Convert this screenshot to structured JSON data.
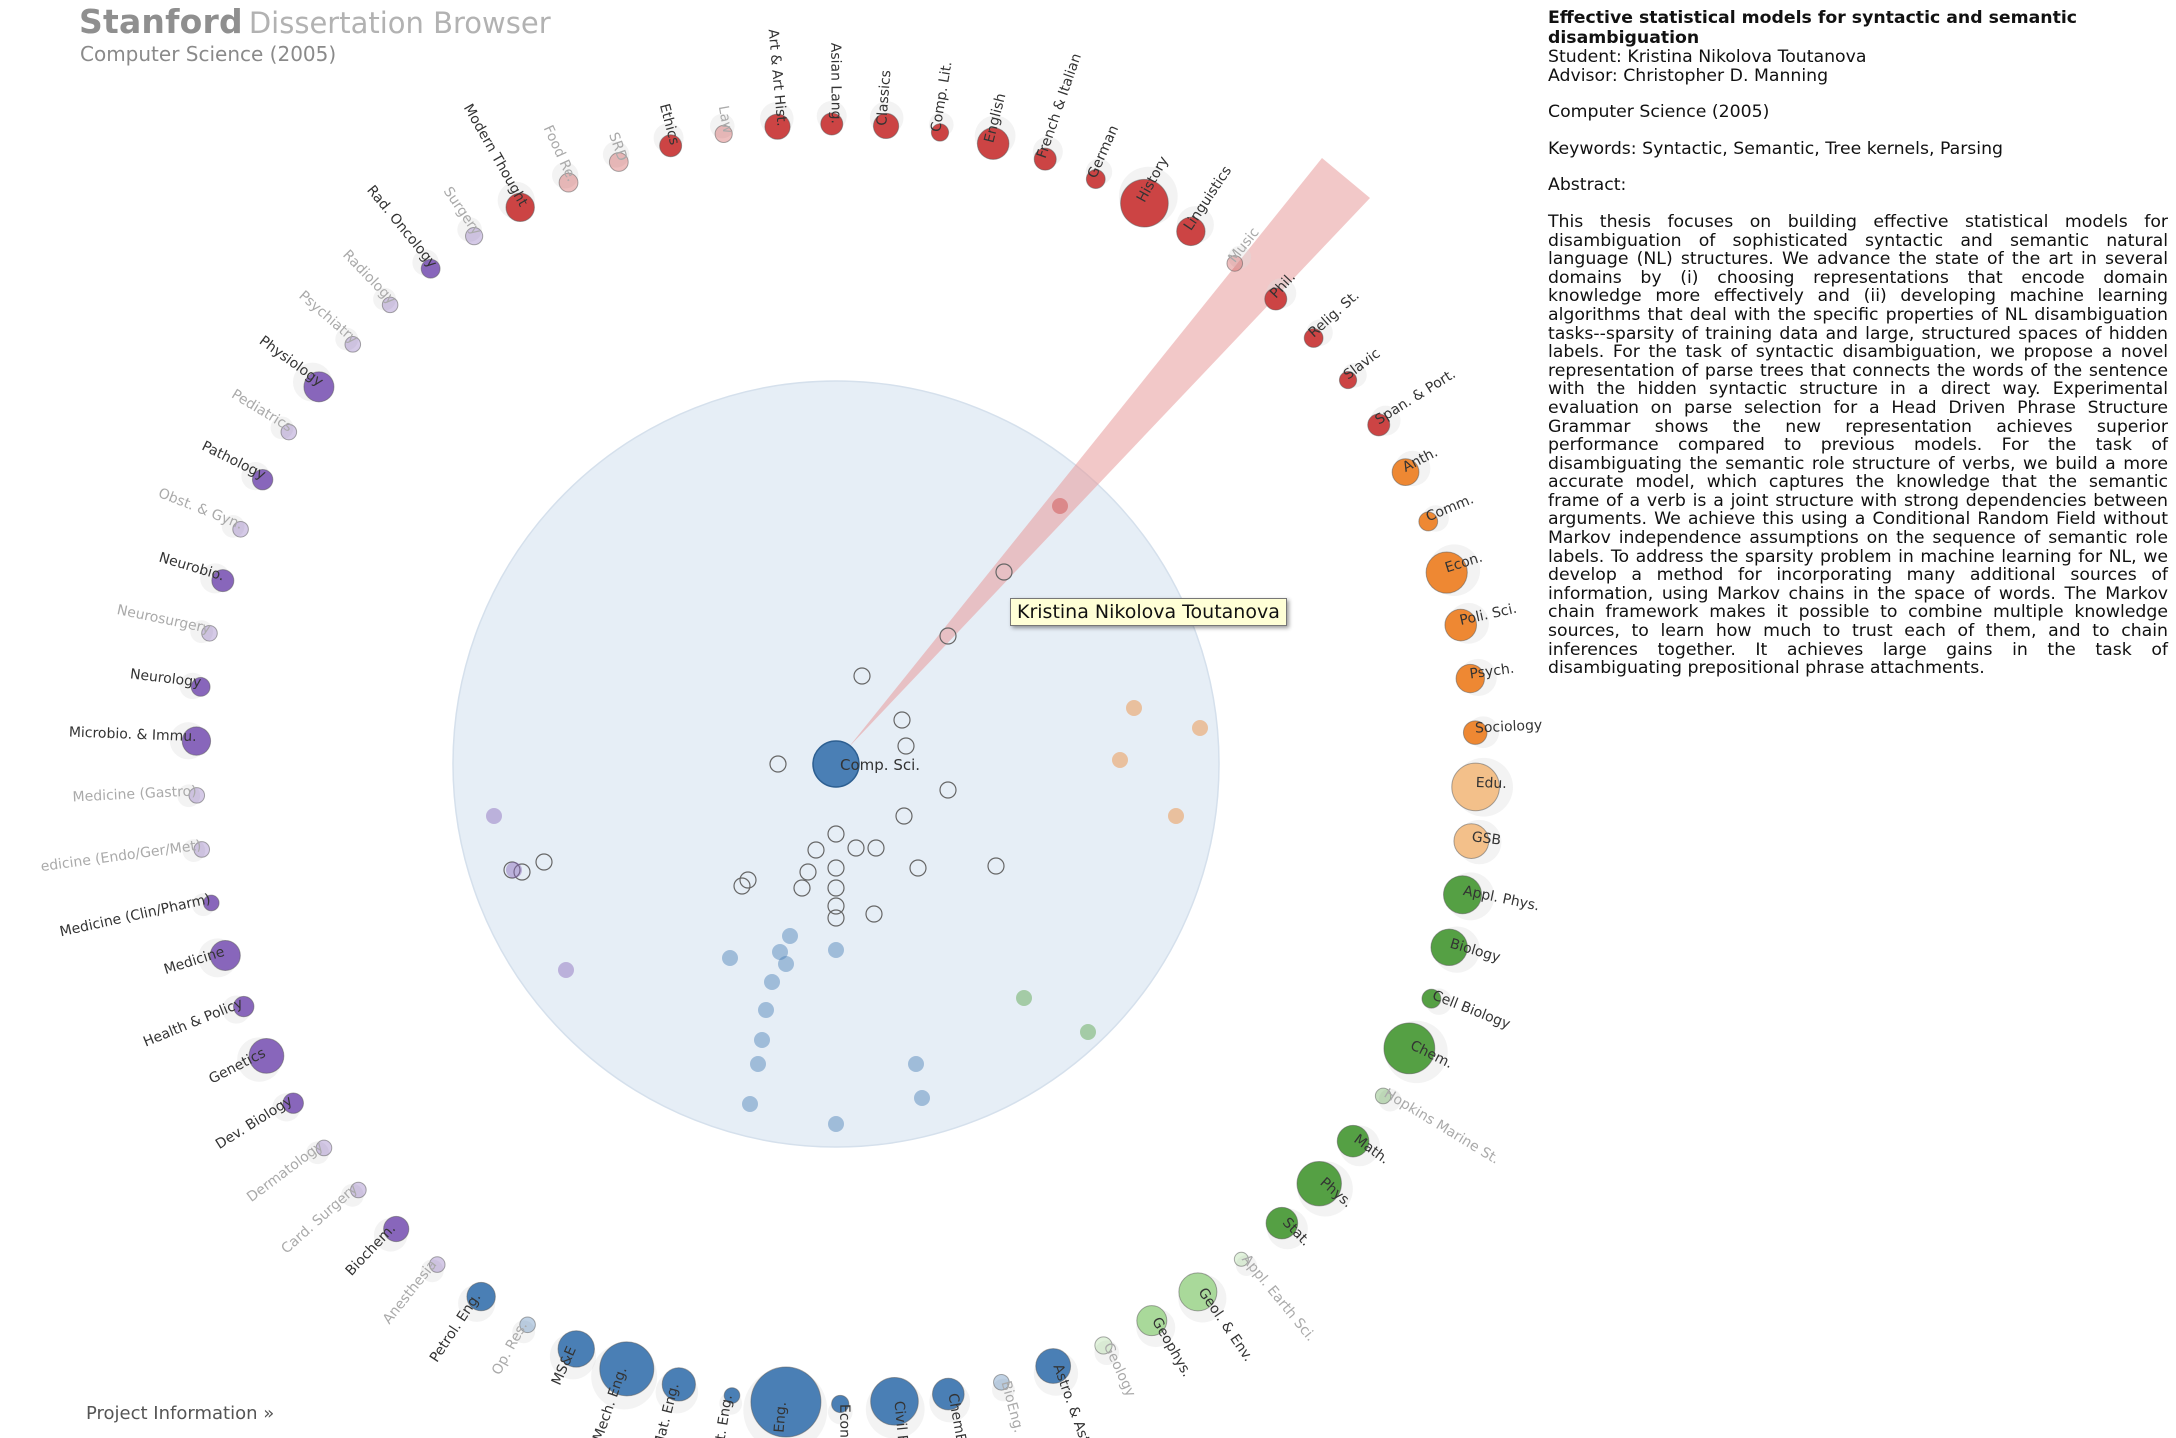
{
  "header": {
    "brand": "Stanford",
    "app_name": "Dissertation Browser",
    "department": "Computer Science (2005)"
  },
  "footer": {
    "project_link": "Project Information »"
  },
  "tooltip": {
    "text": "Kristina Nikolova Toutanova"
  },
  "center": {
    "label": "Comp. Sci."
  },
  "colors": {
    "humanities": "#cc4444",
    "medicine": "#8866bb",
    "engineering": "#4a7fb5",
    "social": "#ee8833",
    "social_light": "#f3c08a",
    "science": "#55a044",
    "science_light": "#a9d99a",
    "inner_circle": "#e6eef6",
    "beam": "#e89a9a"
  },
  "dissertation": {
    "title": "Effective statistical models for syntactic and semantic disambiguation",
    "student_label": "Student:",
    "student": "Kristina Nikolova Toutanova",
    "advisor_label": "Advisor:",
    "advisor": "Christopher D. Manning",
    "department_year": "Computer Science (2005)",
    "keywords_label": "Keywords:",
    "keywords": "Syntactic, Semantic, Tree kernels, Parsing",
    "abstract_label": "Abstract:",
    "abstract": "This thesis focuses on building effective statistical models for disambiguation of sophisticated syntactic and semantic natural language (NL) structures. We advance the state of the art in several domains by (i) choosing representations that encode domain knowledge more effectively and (ii) developing machine learning algorithms that deal with the specific properties of NL disambiguation tasks--sparsity of training data and large, structured spaces of hidden labels. For the task of syntactic disambiguation, we propose a novel representation of parse trees that connects the words of the sentence with the hidden syntactic structure in a direct way. Experimental evaluation on parse selection for a Head Driven Phrase Structure Grammar shows the new representation achieves superior performance compared to previous models. For the task of disambiguating the semantic role structure of verbs, we build a more accurate model, which captures the knowledge that the semantic frame of a verb is a joint structure with strong dependencies between arguments. We achieve this using a Conditional Random Field without Markov independence assumptions on the sequence of semantic role labels. To address the sparsity problem in machine learning for NL, we develop a method for incorporating many additional sources of information, using Markov chains in the space of words. The Markov chain framework makes it possible to combine multiple knowledge sources, to learn how much to trust each of them, and to chain inferences together. It achieves large gains in the task of disambiguating prepositional phrase attachments."
  },
  "departments": [
    {
      "label": "Modern Thought",
      "group": "humanities",
      "faded": false
    },
    {
      "label": "Food Re.",
      "group": "humanities",
      "faded": true
    },
    {
      "label": "SRD",
      "group": "humanities",
      "faded": true
    },
    {
      "label": "Ethics",
      "group": "humanities",
      "faded": false
    },
    {
      "label": "Law",
      "group": "humanities",
      "faded": true
    },
    {
      "label": "Art & Art Hist.",
      "group": "humanities",
      "faded": false
    },
    {
      "label": "Asian Lang.",
      "group": "humanities",
      "faded": false
    },
    {
      "label": "Classics",
      "group": "humanities",
      "faded": false
    },
    {
      "label": "Comp. Lit.",
      "group": "humanities",
      "faded": false
    },
    {
      "label": "English",
      "group": "humanities",
      "faded": false
    },
    {
      "label": "French & Italian",
      "group": "humanities",
      "faded": false
    },
    {
      "label": "German",
      "group": "humanities",
      "faded": false
    },
    {
      "label": "History",
      "group": "humanities",
      "faded": false
    },
    {
      "label": "Linguistics",
      "group": "humanities",
      "faded": false
    },
    {
      "label": "Music",
      "group": "humanities",
      "faded": true
    },
    {
      "label": "Phil.",
      "group": "humanities",
      "faded": false
    },
    {
      "label": "Relig. St.",
      "group": "humanities",
      "faded": false
    },
    {
      "label": "Slavic",
      "group": "humanities",
      "faded": false
    },
    {
      "label": "Span. & Port.",
      "group": "humanities",
      "faded": false
    },
    {
      "label": "Anth.",
      "group": "social",
      "faded": false
    },
    {
      "label": "Comm.",
      "group": "social",
      "faded": false
    },
    {
      "label": "Econ.",
      "group": "social",
      "faded": false
    },
    {
      "label": "Poli. Sci.",
      "group": "social",
      "faded": false
    },
    {
      "label": "Psych.",
      "group": "social",
      "faded": false
    },
    {
      "label": "Sociology",
      "group": "social",
      "faded": false
    },
    {
      "label": "Edu.",
      "group": "social_light",
      "faded": false
    },
    {
      "label": "GSB",
      "group": "social_light",
      "faded": false
    },
    {
      "label": "Appl. Phys.",
      "group": "science",
      "faded": false
    },
    {
      "label": "Biology",
      "group": "science",
      "faded": false
    },
    {
      "label": "Cell Biology",
      "group": "science",
      "faded": false
    },
    {
      "label": "Chem.",
      "group": "science",
      "faded": false
    },
    {
      "label": "Hopkins Marine St.",
      "group": "science",
      "faded": true
    },
    {
      "label": "Math.",
      "group": "science",
      "faded": false
    },
    {
      "label": "Phys.",
      "group": "science",
      "faded": false
    },
    {
      "label": "Stat.",
      "group": "science",
      "faded": false
    },
    {
      "label": "Appl. Earth Sci.",
      "group": "science_light",
      "faded": true
    },
    {
      "label": "Geol. & Env.",
      "group": "science_light",
      "faded": false
    },
    {
      "label": "Geophys.",
      "group": "science_light",
      "faded": false
    },
    {
      "label": "Geology",
      "group": "science_light",
      "faded": true
    },
    {
      "label": "Astro. & Astro.",
      "group": "engineering",
      "faded": false
    },
    {
      "label": "BioEng.",
      "group": "engineering",
      "faded": true
    },
    {
      "label": "ChemEng",
      "group": "engineering",
      "faded": false
    },
    {
      "label": "Civil Eng.",
      "group": "engineering",
      "faded": false
    },
    {
      "label": "Econ. & OR",
      "group": "engineering",
      "faded": false
    },
    {
      "label": "Elec. Eng.",
      "group": "engineering",
      "faded": false
    },
    {
      "label": "Indust. Eng.",
      "group": "engineering",
      "faded": false
    },
    {
      "label": "Mat. Eng.",
      "group": "engineering",
      "faded": false
    },
    {
      "label": "Mech. Eng.",
      "group": "engineering",
      "faded": false
    },
    {
      "label": "MS&E",
      "group": "engineering",
      "faded": false
    },
    {
      "label": "Op. Res.",
      "group": "engineering",
      "faded": true
    },
    {
      "label": "Petrol. Eng.",
      "group": "engineering",
      "faded": false
    },
    {
      "label": "Anesthesia",
      "group": "medicine",
      "faded": true
    },
    {
      "label": "Biochem.",
      "group": "medicine",
      "faded": false
    },
    {
      "label": "Card. Surgery",
      "group": "medicine",
      "faded": true
    },
    {
      "label": "Dermatology",
      "group": "medicine",
      "faded": true
    },
    {
      "label": "Dev. Biology",
      "group": "medicine",
      "faded": false
    },
    {
      "label": "Genetics",
      "group": "medicine",
      "faded": false
    },
    {
      "label": "Health & Policy",
      "group": "medicine",
      "faded": false
    },
    {
      "label": "Medicine",
      "group": "medicine",
      "faded": false
    },
    {
      "label": "Medicine (Clin/Pharm)",
      "group": "medicine",
      "faded": false
    },
    {
      "label": "edicine (Endo/Ger/Met)",
      "group": "medicine",
      "faded": true
    },
    {
      "label": "Medicine (Gastro)",
      "group": "medicine",
      "faded": true
    },
    {
      "label": "Microbio. & Immu.",
      "group": "medicine",
      "faded": false
    },
    {
      "label": "Neurology",
      "group": "medicine",
      "faded": false
    },
    {
      "label": "Neurosurgery",
      "group": "medicine",
      "faded": true
    },
    {
      "label": "Neurobio.",
      "group": "medicine",
      "faded": false
    },
    {
      "label": "Obst. & Gyn.",
      "group": "medicine",
      "faded": true
    },
    {
      "label": "Pathology",
      "group": "medicine",
      "faded": false
    },
    {
      "label": "Pediatrics",
      "group": "medicine",
      "faded": true
    },
    {
      "label": "Physiology",
      "group": "medicine",
      "faded": false
    },
    {
      "label": "Psychiatry",
      "group": "medicine",
      "faded": true
    },
    {
      "label": "Radiology",
      "group": "medicine",
      "faded": true
    },
    {
      "label": "Rad. Oncology",
      "group": "medicine",
      "faded": false
    },
    {
      "label": "Surgery",
      "group": "medicine",
      "faded": true
    }
  ]
}
